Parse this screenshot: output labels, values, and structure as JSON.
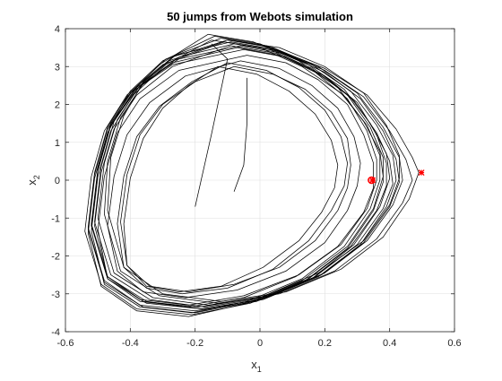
{
  "chart_data": {
    "type": "line",
    "title": "50 jumps from Webots simulation",
    "xlabel": {
      "base": "x",
      "sub": "1"
    },
    "ylabel": {
      "base": "x",
      "sub": "2"
    },
    "xlim": [
      -0.6,
      0.6
    ],
    "ylim": [
      -4,
      4
    ],
    "xticks": [
      -0.6,
      -0.4,
      -0.2,
      0,
      0.2,
      0.4,
      0.6
    ],
    "yticks": [
      -4,
      -3,
      -2,
      -1,
      0,
      1,
      2,
      3,
      4
    ],
    "xtick_labels": [
      "-0.6",
      "-0.4",
      "-0.2",
      "0",
      "0.2",
      "0.4",
      "0.6"
    ],
    "ytick_labels": [
      "-4",
      "-3",
      "-2",
      "-1",
      "0",
      "1",
      "2",
      "3",
      "4"
    ],
    "grid": true,
    "line_color": "#000000",
    "marker_color": "#ff0000",
    "series": [
      {
        "x": [
          -0.09,
          0.05,
          0.2,
          0.33,
          0.42,
          0.47,
          0.49,
          0.46,
          0.38,
          0.25,
          0.08,
          -0.12,
          -0.3,
          -0.42,
          -0.47,
          -0.46,
          -0.42,
          -0.36,
          -0.26,
          -0.09
        ],
        "y": [
          3.65,
          3.45,
          2.95,
          2.25,
          1.35,
          0.6,
          0.2,
          -0.5,
          -1.5,
          -2.35,
          -2.95,
          -3.2,
          -3.0,
          -2.3,
          -0.8,
          0.6,
          1.7,
          2.6,
          3.3,
          3.65
        ]
      },
      {
        "x": [
          -0.08,
          0.06,
          0.2,
          0.32,
          0.4,
          0.45,
          0.47,
          0.44,
          0.36,
          0.23,
          0.06,
          -0.13,
          -0.31,
          -0.43,
          -0.48,
          -0.47,
          -0.43,
          -0.36,
          -0.25,
          -0.08
        ],
        "y": [
          3.6,
          3.4,
          2.9,
          2.2,
          1.3,
          0.55,
          0.0,
          -0.6,
          -1.55,
          -2.4,
          -3.0,
          -3.25,
          -3.05,
          -2.4,
          -0.9,
          0.5,
          1.65,
          2.55,
          3.25,
          3.6
        ]
      },
      {
        "x": [
          -0.1,
          0.04,
          0.18,
          0.3,
          0.38,
          0.43,
          0.44,
          0.41,
          0.33,
          0.2,
          0.03,
          -0.16,
          -0.33,
          -0.45,
          -0.5,
          -0.48,
          -0.44,
          -0.37,
          -0.27,
          -0.1
        ],
        "y": [
          3.7,
          3.5,
          3.0,
          2.3,
          1.4,
          0.6,
          0.0,
          -0.65,
          -1.6,
          -2.45,
          -3.05,
          -3.3,
          -3.1,
          -2.45,
          -1.0,
          0.45,
          1.6,
          2.5,
          3.25,
          3.7
        ]
      },
      {
        "x": [
          -0.06,
          0.07,
          0.2,
          0.31,
          0.38,
          0.42,
          0.43,
          0.4,
          0.32,
          0.19,
          0.02,
          -0.17,
          -0.34,
          -0.46,
          -0.51,
          -0.49,
          -0.45,
          -0.38,
          -0.25,
          -0.06
        ],
        "y": [
          3.55,
          3.35,
          2.85,
          2.15,
          1.3,
          0.55,
          -0.05,
          -0.7,
          -1.65,
          -2.5,
          -3.1,
          -3.35,
          -3.15,
          -2.5,
          -1.1,
          0.35,
          1.55,
          2.45,
          3.2,
          3.55
        ]
      },
      {
        "x": [
          -0.12,
          0.02,
          0.16,
          0.28,
          0.36,
          0.41,
          0.42,
          0.39,
          0.31,
          0.18,
          0.01,
          -0.18,
          -0.35,
          -0.47,
          -0.52,
          -0.5,
          -0.46,
          -0.39,
          -0.29,
          -0.12
        ],
        "y": [
          3.75,
          3.55,
          3.05,
          2.35,
          1.45,
          0.65,
          0.0,
          -0.7,
          -1.7,
          -2.55,
          -3.15,
          -3.4,
          -3.2,
          -2.55,
          -1.15,
          0.3,
          1.5,
          2.4,
          3.2,
          3.75
        ]
      },
      {
        "x": [
          -0.07,
          0.06,
          0.19,
          0.29,
          0.36,
          0.4,
          0.41,
          0.38,
          0.3,
          0.17,
          0.0,
          -0.18,
          -0.35,
          -0.47,
          -0.52,
          -0.5,
          -0.46,
          -0.39,
          -0.27,
          -0.07
        ],
        "y": [
          3.5,
          3.3,
          2.8,
          2.1,
          1.25,
          0.5,
          -0.1,
          -0.75,
          -1.7,
          -2.55,
          -3.15,
          -3.4,
          -3.25,
          -2.6,
          -1.2,
          0.25,
          1.45,
          2.35,
          3.1,
          3.5
        ]
      },
      {
        "x": [
          -0.14,
          0.0,
          0.14,
          0.26,
          0.34,
          0.39,
          0.4,
          0.37,
          0.29,
          0.16,
          -0.01,
          -0.2,
          -0.37,
          -0.48,
          -0.53,
          -0.51,
          -0.47,
          -0.4,
          -0.3,
          -0.14
        ],
        "y": [
          3.8,
          3.6,
          3.1,
          2.4,
          1.5,
          0.7,
          0.05,
          -0.7,
          -1.7,
          -2.6,
          -3.2,
          -3.45,
          -3.3,
          -2.65,
          -1.25,
          0.2,
          1.4,
          2.35,
          3.15,
          3.8
        ]
      },
      {
        "x": [
          -0.05,
          0.08,
          0.2,
          0.3,
          0.36,
          0.39,
          0.39,
          0.36,
          0.28,
          0.15,
          -0.02,
          -0.2,
          -0.36,
          -0.48,
          -0.53,
          -0.51,
          -0.47,
          -0.4,
          -0.27,
          -0.05
        ],
        "y": [
          3.45,
          3.25,
          2.75,
          2.05,
          1.2,
          0.45,
          -0.15,
          -0.8,
          -1.75,
          -2.6,
          -3.2,
          -3.5,
          -3.35,
          -2.7,
          -1.3,
          0.15,
          1.35,
          2.3,
          3.05,
          3.45
        ]
      },
      {
        "x": [
          -0.11,
          0.03,
          0.16,
          0.27,
          0.34,
          0.38,
          0.38,
          0.35,
          0.27,
          0.14,
          -0.03,
          -0.21,
          -0.38,
          -0.49,
          -0.54,
          -0.52,
          -0.48,
          -0.41,
          -0.3,
          -0.11
        ],
        "y": [
          3.65,
          3.45,
          2.95,
          2.25,
          1.4,
          0.6,
          -0.05,
          -0.8,
          -1.8,
          -2.65,
          -3.25,
          -3.55,
          -3.4,
          -2.75,
          -1.35,
          0.1,
          1.3,
          2.25,
          3.05,
          3.65
        ]
      },
      {
        "x": [
          -0.16,
          -0.02,
          0.12,
          0.24,
          0.32,
          0.37,
          0.38,
          0.35,
          0.27,
          0.13,
          -0.04,
          -0.22,
          -0.38,
          -0.49,
          -0.53,
          -0.51,
          -0.47,
          -0.41,
          -0.31,
          -0.16
        ],
        "y": [
          3.85,
          3.65,
          3.15,
          2.45,
          1.55,
          0.75,
          0.1,
          -0.75,
          -1.75,
          -2.65,
          -3.25,
          -3.6,
          -3.45,
          -2.8,
          -1.4,
          0.05,
          1.25,
          2.2,
          3.05,
          3.85
        ]
      },
      {
        "x": [
          -0.04,
          0.08,
          0.18,
          0.27,
          0.32,
          0.35,
          0.35,
          0.32,
          0.24,
          0.11,
          -0.05,
          -0.22,
          -0.37,
          -0.47,
          -0.5,
          -0.48,
          -0.44,
          -0.37,
          -0.25,
          -0.04
        ],
        "y": [
          3.3,
          3.1,
          2.65,
          2.0,
          1.2,
          0.45,
          -0.2,
          -0.85,
          -1.75,
          -2.55,
          -3.1,
          -3.35,
          -3.2,
          -2.6,
          -1.3,
          0.1,
          1.25,
          2.15,
          2.9,
          3.3
        ]
      },
      {
        "x": [
          -0.06,
          0.06,
          0.16,
          0.24,
          0.29,
          0.31,
          0.3,
          0.27,
          0.2,
          0.08,
          -0.07,
          -0.23,
          -0.36,
          -0.44,
          -0.47,
          -0.45,
          -0.41,
          -0.34,
          -0.23,
          -0.06
        ],
        "y": [
          3.15,
          2.95,
          2.5,
          1.9,
          1.15,
          0.45,
          -0.15,
          -0.8,
          -1.65,
          -2.4,
          -2.9,
          -3.1,
          -2.95,
          -2.4,
          -1.2,
          0.1,
          1.2,
          2.05,
          2.75,
          3.15
        ]
      },
      {
        "x": [
          -0.08,
          0.04,
          0.14,
          0.22,
          0.27,
          0.28,
          0.27,
          0.24,
          0.17,
          0.06,
          -0.08,
          -0.22,
          -0.34,
          -0.41,
          -0.43,
          -0.41,
          -0.37,
          -0.3,
          -0.2,
          -0.08
        ],
        "y": [
          3.0,
          2.8,
          2.4,
          1.8,
          1.1,
          0.4,
          -0.2,
          -0.8,
          -1.6,
          -2.3,
          -2.75,
          -2.95,
          -2.8,
          -2.25,
          -1.1,
          0.15,
          1.2,
          2.0,
          2.6,
          3.0
        ]
      },
      {
        "x": [
          -0.1,
          0.02,
          0.12,
          0.2,
          0.25,
          0.27,
          0.26,
          0.22,
          0.15,
          0.04,
          -0.1,
          -0.24,
          -0.35,
          -0.42,
          -0.44,
          -0.42,
          -0.38,
          -0.31,
          -0.21,
          -0.1
        ],
        "y": [
          3.1,
          2.9,
          2.45,
          1.85,
          1.15,
          0.45,
          -0.15,
          -0.8,
          -1.6,
          -2.35,
          -2.85,
          -3.0,
          -2.85,
          -2.3,
          -1.15,
          0.1,
          1.15,
          1.95,
          2.6,
          3.1
        ]
      },
      {
        "x": [
          -0.13,
          -0.01,
          0.09,
          0.17,
          0.22,
          0.24,
          0.23,
          0.19,
          0.12,
          0.01,
          -0.12,
          -0.25,
          -0.35,
          -0.41,
          -0.42,
          -0.4,
          -0.36,
          -0.3,
          -0.22,
          -0.13
        ],
        "y": [
          3.0,
          2.8,
          2.35,
          1.75,
          1.05,
          0.4,
          -0.2,
          -0.85,
          -1.6,
          -2.3,
          -2.8,
          -2.95,
          -2.8,
          -2.25,
          -1.15,
          0.05,
          1.1,
          1.9,
          2.5,
          3.0
        ]
      },
      {
        "x": [
          -0.09,
          0.05,
          0.17,
          0.27,
          0.33,
          0.36,
          0.36,
          0.33,
          0.25,
          0.12,
          -0.05,
          -0.22,
          -0.37,
          -0.47,
          -0.51,
          -0.49,
          -0.45,
          -0.38,
          -0.27,
          -0.09
        ],
        "y": [
          3.55,
          3.35,
          2.85,
          2.15,
          1.3,
          0.55,
          0.0,
          -0.75,
          -1.7,
          -2.5,
          -3.05,
          -3.3,
          -3.15,
          -2.55,
          -1.2,
          0.2,
          1.35,
          2.25,
          3.0,
          3.55
        ]
      },
      {
        "x": [
          -0.15,
          0.0,
          0.13,
          0.25,
          0.33,
          0.37,
          0.37,
          0.34,
          0.26,
          0.13,
          -0.04,
          -0.21,
          -0.37,
          -0.48,
          -0.52,
          -0.5,
          -0.46,
          -0.39,
          -0.29,
          -0.15
        ],
        "y": [
          3.7,
          3.5,
          3.0,
          2.3,
          1.45,
          0.65,
          0.0,
          -0.75,
          -1.75,
          -2.6,
          -3.2,
          -3.5,
          -3.35,
          -2.75,
          -1.35,
          0.1,
          1.3,
          2.25,
          3.05,
          3.7
        ]
      },
      {
        "x": [
          -0.1,
          0.06,
          0.2,
          0.32,
          0.39,
          0.43,
          0.43,
          0.4,
          0.32,
          0.18,
          0.0,
          -0.19,
          -0.36,
          -0.47,
          -0.52,
          -0.5,
          -0.46,
          -0.38,
          -0.28,
          -0.1
        ],
        "y": [
          3.7,
          3.5,
          3.0,
          2.3,
          1.45,
          0.65,
          0.05,
          -0.65,
          -1.6,
          -2.45,
          -3.1,
          -3.35,
          -3.2,
          -2.55,
          -1.2,
          0.25,
          1.45,
          2.4,
          3.15,
          3.7
        ]
      },
      {
        "x": [
          -0.2,
          -0.15,
          -0.1,
          -0.15
        ],
        "y": [
          -0.7,
          1.2,
          3.2,
          3.6
        ]
      },
      {
        "x": [
          -0.04,
          -0.04,
          -0.05,
          -0.08
        ],
        "y": [
          2.7,
          1.5,
          0.4,
          -0.3
        ]
      }
    ],
    "markers": [
      {
        "x": 0.344,
        "y": 0.0,
        "shape": "circle"
      },
      {
        "x": 0.347,
        "y": 0.0,
        "shape": "star"
      },
      {
        "x": 0.498,
        "y": 0.2,
        "shape": "star"
      }
    ]
  }
}
